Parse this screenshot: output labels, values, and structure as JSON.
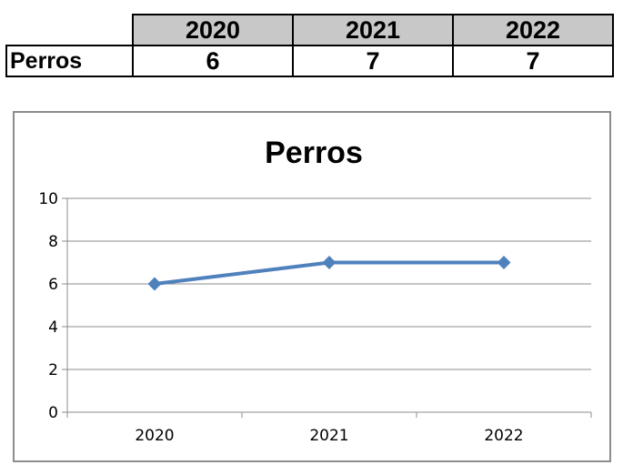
{
  "table": {
    "years": [
      "2020",
      "2021",
      "2022"
    ],
    "row_label": "Perros",
    "values": [
      "6",
      "7",
      "7"
    ],
    "header_color": "#c8c8c8"
  },
  "chart_data": {
    "type": "line",
    "title": "Perros",
    "categories": [
      "2020",
      "2021",
      "2022"
    ],
    "series": [
      {
        "values": [
          6,
          7,
          7
        ],
        "color": "#4f81bd"
      }
    ],
    "ylim": [
      0,
      10
    ],
    "yticks": [
      0,
      2,
      4,
      6,
      8,
      10
    ],
    "grid": true,
    "legend": "none",
    "marker": "diamond"
  }
}
